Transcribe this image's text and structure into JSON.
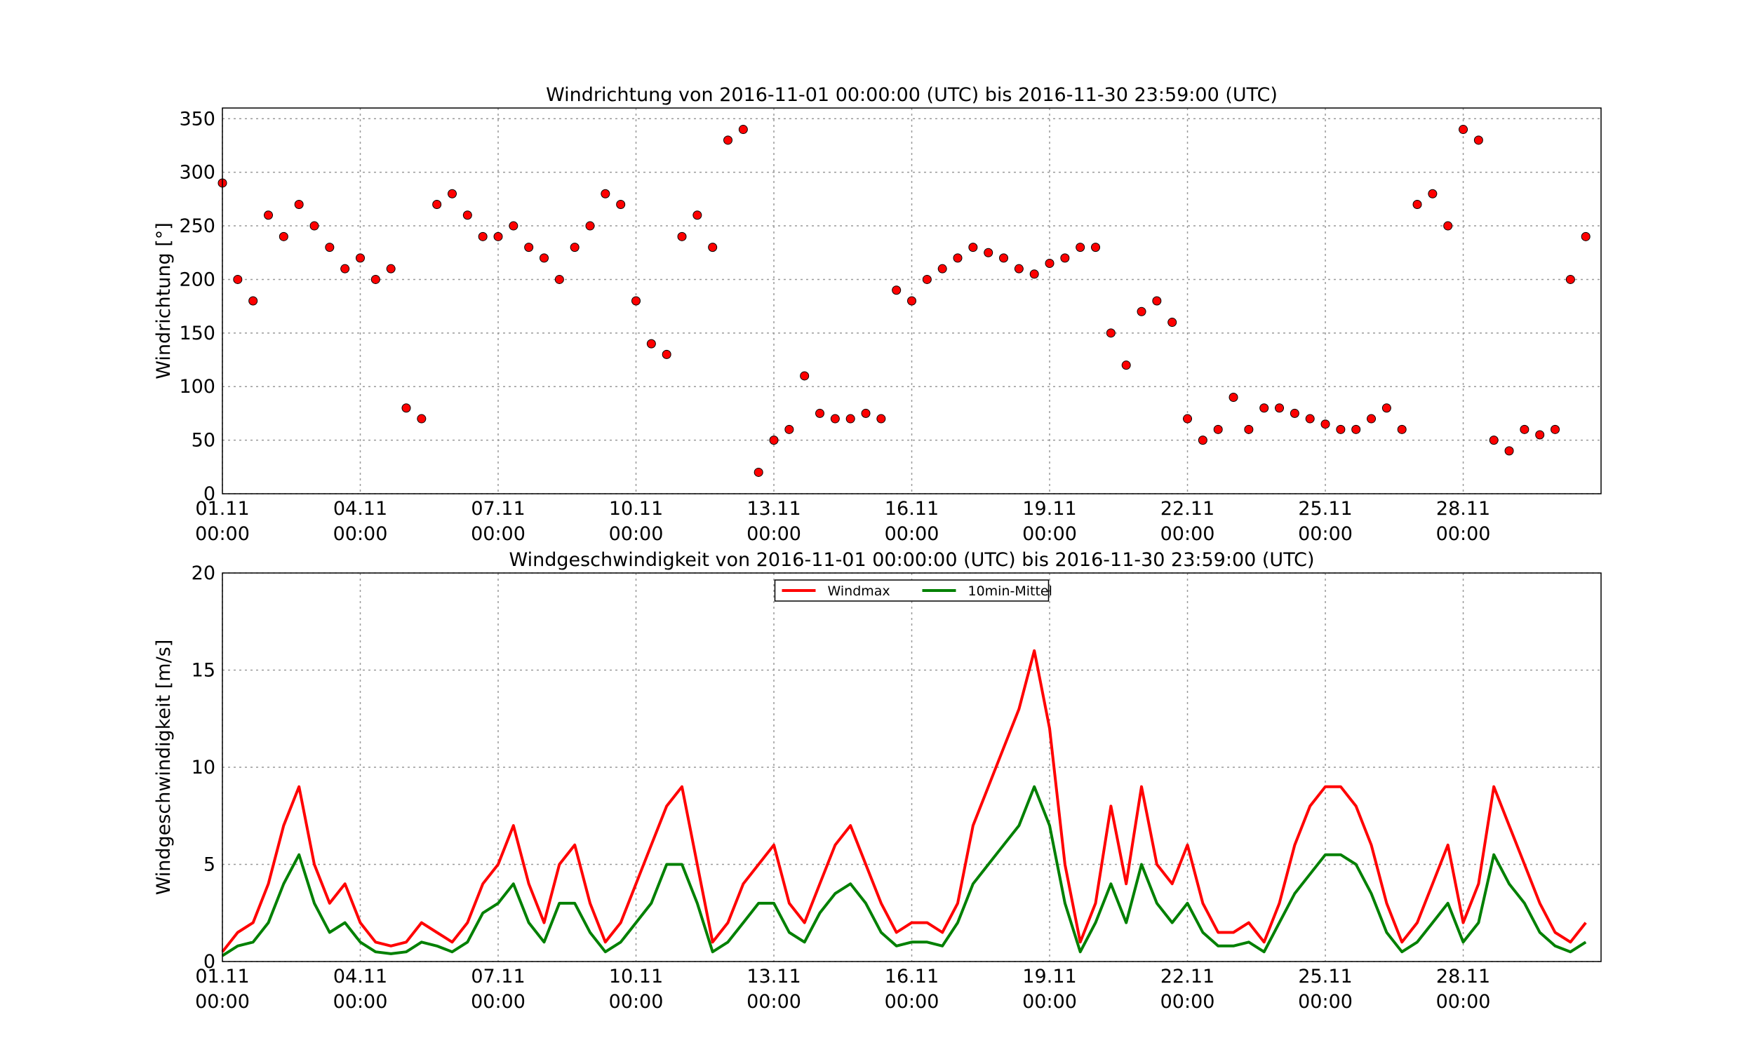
{
  "chart_data": [
    {
      "type": "scatter",
      "title": "Windrichtung von 2016-11-01 00:00:00 (UTC) bis 2016-11-30 23:59:00 (UTC)",
      "ylabel": "Windrichtung [°]",
      "x": [
        "01.11 00:00",
        "01.11 08:00",
        "01.11 16:00",
        "02.11 00:00",
        "02.11 08:00",
        "02.11 16:00",
        "03.11 00:00",
        "03.11 08:00",
        "03.11 16:00",
        "04.11 00:00",
        "04.11 08:00",
        "04.11 16:00",
        "05.11 00:00",
        "05.11 08:00",
        "05.11 16:00",
        "06.11 00:00",
        "06.11 08:00",
        "06.11 16:00",
        "07.11 00:00",
        "07.11 08:00",
        "07.11 16:00",
        "08.11 00:00",
        "08.11 08:00",
        "08.11 16:00",
        "09.11 00:00",
        "09.11 08:00",
        "09.11 16:00",
        "10.11 00:00",
        "10.11 08:00",
        "10.11 16:00",
        "11.11 00:00",
        "11.11 08:00",
        "11.11 16:00",
        "12.11 00:00",
        "12.11 08:00",
        "12.11 16:00",
        "13.11 00:00",
        "13.11 08:00",
        "13.11 16:00",
        "14.11 00:00",
        "14.11 08:00",
        "14.11 16:00",
        "15.11 00:00",
        "15.11 08:00",
        "15.11 16:00",
        "16.11 00:00",
        "16.11 08:00",
        "16.11 16:00",
        "17.11 00:00",
        "17.11 08:00",
        "17.11 16:00",
        "18.11 00:00",
        "18.11 08:00",
        "18.11 16:00",
        "19.11 00:00",
        "19.11 08:00",
        "19.11 16:00",
        "20.11 00:00",
        "20.11 08:00",
        "20.11 16:00",
        "21.11 00:00",
        "21.11 08:00",
        "21.11 16:00",
        "22.11 00:00",
        "22.11 08:00",
        "22.11 16:00",
        "23.11 00:00",
        "23.11 08:00",
        "23.11 16:00",
        "24.11 00:00",
        "24.11 08:00",
        "24.11 16:00",
        "25.11 00:00",
        "25.11 08:00",
        "25.11 16:00",
        "26.11 00:00",
        "26.11 08:00",
        "26.11 16:00",
        "27.11 00:00",
        "27.11 08:00",
        "27.11 16:00",
        "28.11 00:00",
        "28.11 08:00",
        "28.11 16:00",
        "29.11 00:00",
        "29.11 08:00",
        "29.11 16:00",
        "30.11 00:00",
        "30.11 08:00",
        "30.11 16:00"
      ],
      "values": [
        290,
        200,
        180,
        260,
        240,
        270,
        250,
        230,
        210,
        220,
        200,
        210,
        80,
        70,
        270,
        280,
        260,
        240,
        240,
        250,
        230,
        220,
        200,
        230,
        250,
        280,
        270,
        180,
        140,
        130,
        240,
        260,
        230,
        330,
        340,
        20,
        50,
        60,
        110,
        75,
        70,
        70,
        75,
        70,
        190,
        180,
        200,
        210,
        220,
        230,
        225,
        220,
        210,
        205,
        215,
        220,
        230,
        230,
        150,
        120,
        170,
        180,
        160,
        70,
        50,
        60,
        90,
        60,
        80,
        80,
        75,
        70,
        65,
        60,
        60,
        70,
        80,
        60,
        270,
        280,
        250,
        340,
        330,
        50,
        40,
        60,
        55,
        60,
        200,
        240
      ],
      "color": "#ff0000",
      "xlim": [
        "01.11 00:00",
        "30.11 23:59"
      ],
      "ylim": [
        0,
        360
      ],
      "xticks": [
        "01.11 00:00",
        "04.11 00:00",
        "07.11 00:00",
        "10.11 00:00",
        "13.11 00:00",
        "16.11 00:00",
        "19.11 00:00",
        "22.11 00:00",
        "25.11 00:00",
        "28.11 00:00"
      ],
      "yticks": [
        0,
        50,
        100,
        150,
        200,
        250,
        300,
        350
      ],
      "grid": true
    },
    {
      "type": "line",
      "title": "Windgeschwindigkeit von 2016-11-01 00:00:00 (UTC) bis 2016-11-30 23:59:00 (UTC)",
      "ylabel": "Windgeschwindigkeit [m/s]",
      "x": [
        "01.11 00:00",
        "01.11 08:00",
        "01.11 16:00",
        "02.11 00:00",
        "02.11 08:00",
        "02.11 16:00",
        "03.11 00:00",
        "03.11 08:00",
        "03.11 16:00",
        "04.11 00:00",
        "04.11 08:00",
        "04.11 16:00",
        "05.11 00:00",
        "05.11 08:00",
        "05.11 16:00",
        "06.11 00:00",
        "06.11 08:00",
        "06.11 16:00",
        "07.11 00:00",
        "07.11 08:00",
        "07.11 16:00",
        "08.11 00:00",
        "08.11 08:00",
        "08.11 16:00",
        "09.11 00:00",
        "09.11 08:00",
        "09.11 16:00",
        "10.11 00:00",
        "10.11 08:00",
        "10.11 16:00",
        "11.11 00:00",
        "11.11 08:00",
        "11.11 16:00",
        "12.11 00:00",
        "12.11 08:00",
        "12.11 16:00",
        "13.11 00:00",
        "13.11 08:00",
        "13.11 16:00",
        "14.11 00:00",
        "14.11 08:00",
        "14.11 16:00",
        "15.11 00:00",
        "15.11 08:00",
        "15.11 16:00",
        "16.11 00:00",
        "16.11 08:00",
        "16.11 16:00",
        "17.11 00:00",
        "17.11 08:00",
        "17.11 16:00",
        "18.11 00:00",
        "18.11 08:00",
        "18.11 16:00",
        "19.11 00:00",
        "19.11 08:00",
        "19.11 16:00",
        "20.11 00:00",
        "20.11 08:00",
        "20.11 16:00",
        "21.11 00:00",
        "21.11 08:00",
        "21.11 16:00",
        "22.11 00:00",
        "22.11 08:00",
        "22.11 16:00",
        "23.11 00:00",
        "23.11 08:00",
        "23.11 16:00",
        "24.11 00:00",
        "24.11 08:00",
        "24.11 16:00",
        "25.11 00:00",
        "25.11 08:00",
        "25.11 16:00",
        "26.11 00:00",
        "26.11 08:00",
        "26.11 16:00",
        "27.11 00:00",
        "27.11 08:00",
        "27.11 16:00",
        "28.11 00:00",
        "28.11 08:00",
        "28.11 16:00",
        "29.11 00:00",
        "29.11 08:00",
        "29.11 16:00",
        "30.11 00:00",
        "30.11 08:00",
        "30.11 16:00"
      ],
      "series": [
        {
          "name": "Windmax",
          "color": "#ff0000",
          "values": [
            0.5,
            1.5,
            2,
            4,
            7,
            9,
            5,
            3,
            4,
            2,
            1,
            0.8,
            1,
            2,
            1.5,
            1,
            2,
            4,
            5,
            7,
            4,
            2,
            5,
            6,
            3,
            1,
            2,
            4,
            6,
            8,
            9,
            5,
            1,
            2,
            4,
            5,
            6,
            3,
            2,
            4,
            6,
            7,
            5,
            3,
            1.5,
            2,
            2,
            1.5,
            3,
            7,
            9,
            11,
            13,
            16,
            12,
            5,
            1,
            3,
            8,
            4,
            9,
            5,
            4,
            6,
            3,
            1.5,
            1.5,
            2,
            1,
            3,
            6,
            8,
            9,
            9,
            8,
            6,
            3,
            1,
            2,
            4,
            6,
            2,
            4,
            9,
            7,
            5,
            3,
            1.5,
            1,
            2
          ]
        },
        {
          "name": "10min-Mittel",
          "color": "#008000",
          "values": [
            0.3,
            0.8,
            1,
            2,
            4,
            5.5,
            3,
            1.5,
            2,
            1,
            0.5,
            0.4,
            0.5,
            1,
            0.8,
            0.5,
            1,
            2.5,
            3,
            4,
            2,
            1,
            3,
            3,
            1.5,
            0.5,
            1,
            2,
            3,
            5,
            5,
            3,
            0.5,
            1,
            2,
            3,
            3,
            1.5,
            1,
            2.5,
            3.5,
            4,
            3,
            1.5,
            0.8,
            1,
            1,
            0.8,
            2,
            4,
            5,
            6,
            7,
            9,
            7,
            3,
            0.5,
            2,
            4,
            2,
            5,
            3,
            2,
            3,
            1.5,
            0.8,
            0.8,
            1,
            0.5,
            2,
            3.5,
            4.5,
            5.5,
            5.5,
            5,
            3.5,
            1.5,
            0.5,
            1,
            2,
            3,
            1,
            2,
            5.5,
            4,
            3,
            1.5,
            0.8,
            0.5,
            1
          ]
        }
      ],
      "xlim": [
        "01.11 00:00",
        "30.11 23:59"
      ],
      "ylim": [
        0,
        20
      ],
      "xticks": [
        "01.11 00:00",
        "04.11 00:00",
        "07.11 00:00",
        "10.11 00:00",
        "13.11 00:00",
        "16.11 00:00",
        "19.11 00:00",
        "22.11 00:00",
        "25.11 00:00",
        "28.11 00:00"
      ],
      "yticks": [
        0,
        5,
        10,
        15,
        20
      ],
      "grid": true,
      "legend": "upper center"
    }
  ]
}
